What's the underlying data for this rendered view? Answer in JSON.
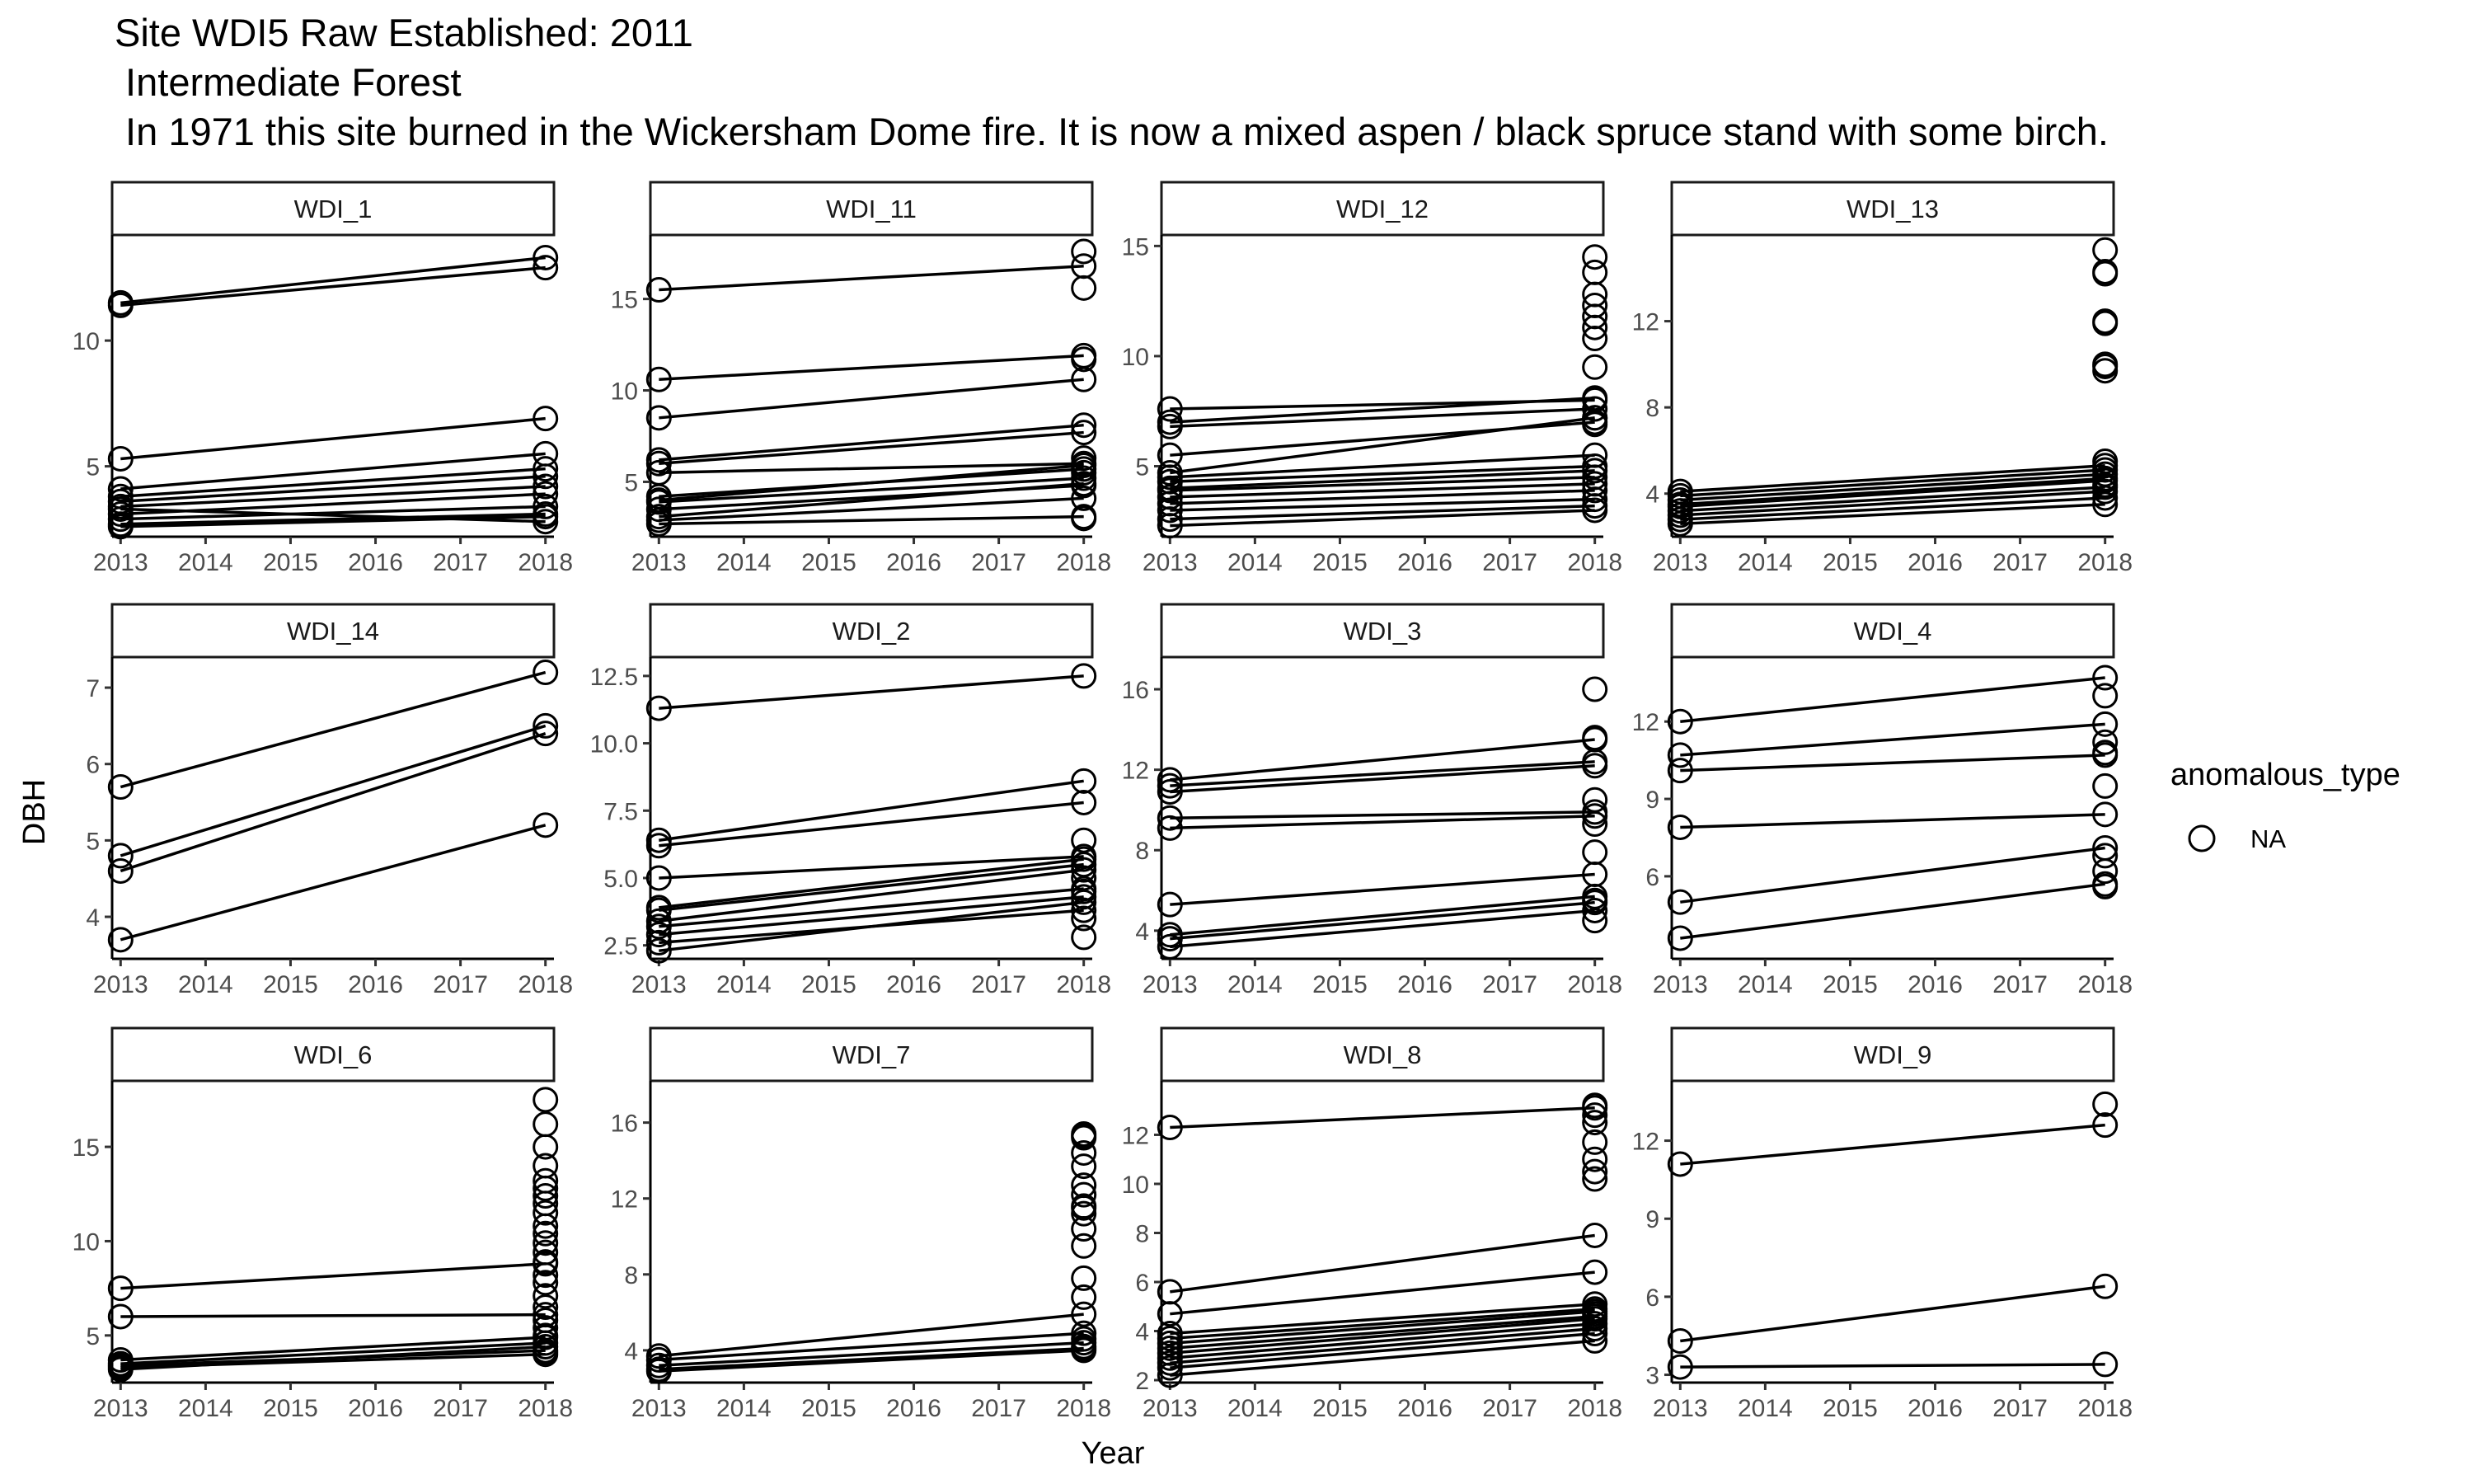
{
  "title_lines": [
    "Site WDI5 Raw Established: 2011",
    " Intermediate Forest",
    " In 1971 this site burned in the Wickersham Dome fire. It is now a mixed aspen / black spruce stand with some birch."
  ],
  "chart_data": {
    "type": "scatter",
    "subtype": "faceted point + line (connected per tree)",
    "xlabel": "Year",
    "ylabel": "DBH",
    "x_ticks": [
      2013,
      2014,
      2015,
      2016,
      2017,
      2018
    ],
    "xlim": [
      2012.9,
      2018.1
    ],
    "grid": false,
    "legend": {
      "title": "anomalous_type",
      "entries": [
        "NA"
      ],
      "position": "right",
      "marker": "open-circle"
    },
    "panels": [
      {
        "name": "WDI_1",
        "ylim": [
          2.2,
          14.2
        ],
        "y_ticks": [
          5,
          10
        ],
        "pairs": [
          [
            11.5,
            13.3
          ],
          [
            11.4,
            12.9
          ],
          [
            5.3,
            6.9
          ],
          [
            4.1,
            5.5
          ],
          [
            3.8,
            4.9
          ],
          [
            3.6,
            4.6
          ],
          [
            3.4,
            4.2
          ],
          [
            3.1,
            3.9
          ],
          [
            2.9,
            3.4
          ],
          [
            2.7,
            3.1
          ],
          [
            3.3,
            2.8
          ],
          [
            2.6,
            3.0
          ]
        ],
        "extras_2018": []
      },
      {
        "name": "WDI_11",
        "ylim": [
          2.0,
          18.5
        ],
        "y_ticks": [
          5,
          10,
          15
        ],
        "pairs": [
          [
            15.5,
            16.8
          ],
          [
            10.6,
            11.9
          ],
          [
            8.5,
            10.6
          ],
          [
            6.2,
            8.1
          ],
          [
            6.0,
            7.7
          ],
          [
            5.5,
            6.0
          ],
          [
            4.2,
            5.7
          ],
          [
            4.0,
            5.9
          ],
          [
            3.9,
            5.2
          ],
          [
            3.5,
            4.8
          ],
          [
            3.1,
            4.9
          ],
          [
            2.9,
            4.1
          ],
          [
            2.7,
            3.1
          ]
        ],
        "extras_2018": [
          17.6,
          15.6,
          11.7,
          6.3,
          5.5,
          3.0
        ]
      },
      {
        "name": "WDI_12",
        "ylim": [
          1.8,
          15.5
        ],
        "y_ticks": [
          5,
          10,
          15
        ],
        "pairs": [
          [
            7.6,
            8.0
          ],
          [
            7.0,
            8.1
          ],
          [
            6.8,
            7.6
          ],
          [
            5.5,
            7.0
          ],
          [
            4.7,
            7.2
          ],
          [
            4.5,
            5.5
          ],
          [
            4.3,
            5.0
          ],
          [
            4.0,
            4.8
          ],
          [
            3.9,
            4.5
          ],
          [
            3.6,
            4.2
          ],
          [
            3.3,
            3.9
          ],
          [
            3.0,
            3.5
          ],
          [
            2.6,
            3.2
          ],
          [
            2.3,
            3.0
          ]
        ],
        "extras_2018": [
          14.5,
          13.8,
          12.8,
          12.3,
          11.8,
          11.3,
          10.8,
          9.5,
          7.2,
          6.9
        ]
      },
      {
        "name": "WDI_13",
        "ylim": [
          2.0,
          16.0
        ],
        "y_ticks": [
          4,
          8,
          12
        ],
        "pairs": [
          [
            4.1,
            5.3
          ],
          [
            3.9,
            5.1
          ],
          [
            3.7,
            4.9
          ],
          [
            3.5,
            4.7
          ],
          [
            3.4,
            4.6
          ],
          [
            3.2,
            4.3
          ],
          [
            3.0,
            4.1
          ],
          [
            2.8,
            3.8
          ],
          [
            2.6,
            3.5
          ]
        ],
        "extras_2018": [
          15.3,
          14.3,
          14.2,
          12.0,
          11.9,
          10.0,
          9.9,
          9.7,
          5.5,
          4.4
        ]
      },
      {
        "name": "WDI_14",
        "ylim": [
          3.45,
          7.4
        ],
        "y_ticks": [
          4,
          5,
          6,
          7
        ],
        "pairs": [
          [
            5.7,
            7.2
          ],
          [
            4.8,
            6.5
          ],
          [
            4.6,
            6.4
          ],
          [
            3.7,
            5.2
          ]
        ],
        "extras_2018": []
      },
      {
        "name": "WDI_2",
        "ylim": [
          2.0,
          13.2
        ],
        "y_ticks": [
          2.5,
          5.0,
          7.5,
          10.0,
          12.5
        ],
        "pairs": [
          [
            11.3,
            12.5
          ],
          [
            6.4,
            8.6
          ],
          [
            6.2,
            7.8
          ],
          [
            5.0,
            5.8
          ],
          [
            3.9,
            5.7
          ],
          [
            3.8,
            5.5
          ],
          [
            3.4,
            5.3
          ],
          [
            3.2,
            4.6
          ],
          [
            2.9,
            4.3
          ],
          [
            2.6,
            3.8
          ],
          [
            2.3,
            4.1
          ]
        ],
        "extras_2018": [
          6.4,
          5.0,
          4.5,
          3.5,
          2.8
        ]
      },
      {
        "name": "WDI_3",
        "ylim": [
          2.6,
          17.6
        ],
        "y_ticks": [
          4,
          8,
          12,
          16
        ],
        "pairs": [
          [
            11.5,
            13.5
          ],
          [
            11.2,
            12.4
          ],
          [
            10.9,
            12.2
          ],
          [
            9.6,
            9.9
          ],
          [
            9.1,
            9.7
          ],
          [
            5.3,
            6.8
          ],
          [
            3.8,
            5.7
          ],
          [
            3.6,
            5.4
          ],
          [
            3.2,
            5.0
          ]
        ],
        "extras_2018": [
          16.0,
          13.6,
          10.5,
          9.3,
          7.9,
          5.5,
          4.5
        ]
      },
      {
        "name": "WDI_4",
        "ylim": [
          2.8,
          14.5
        ],
        "y_ticks": [
          6,
          9,
          12
        ],
        "pairs": [
          [
            12.0,
            13.7
          ],
          [
            10.7,
            11.9
          ],
          [
            10.1,
            10.7
          ],
          [
            7.9,
            8.4
          ],
          [
            5.0,
            7.1
          ],
          [
            3.6,
            5.7
          ]
        ],
        "extras_2018": [
          13.0,
          11.2,
          10.8,
          9.5,
          6.8,
          6.2,
          5.6
        ]
      },
      {
        "name": "WDI_6",
        "ylim": [
          2.5,
          18.5
        ],
        "y_ticks": [
          5,
          10,
          15
        ],
        "pairs": [
          [
            7.5,
            8.8
          ],
          [
            6.0,
            6.1
          ],
          [
            3.7,
            4.9
          ],
          [
            3.5,
            4.6
          ],
          [
            3.4,
            4.2
          ],
          [
            3.3,
            4.0
          ],
          [
            3.2,
            4.4
          ]
        ],
        "extras_2018": [
          17.5,
          16.2,
          15.0,
          14.0,
          13.2,
          12.8,
          12.4,
          12.0,
          11.5,
          10.8,
          10.4,
          9.9,
          9.4,
          8.9,
          8.2,
          7.8,
          7.1,
          6.5,
          5.8,
          5.4,
          5.0,
          4.1
        ]
      },
      {
        "name": "WDI_7",
        "ylim": [
          2.3,
          18.2
        ],
        "y_ticks": [
          4,
          8,
          12,
          16
        ],
        "pairs": [
          [
            3.7,
            5.9
          ],
          [
            3.5,
            4.9
          ],
          [
            3.2,
            4.4
          ],
          [
            3.0,
            4.1
          ],
          [
            2.9,
            4.0
          ]
        ],
        "extras_2018": [
          15.4,
          15.3,
          15.2,
          14.4,
          13.7,
          12.7,
          12.2,
          11.6,
          11.5,
          11.2,
          10.4,
          9.5,
          7.8,
          6.8,
          4.6,
          4.2
        ]
      },
      {
        "name": "WDI_8",
        "ylim": [
          1.9,
          14.2
        ],
        "y_ticks": [
          2,
          4,
          6,
          8,
          10,
          12
        ],
        "pairs": [
          [
            12.3,
            13.1
          ],
          [
            5.6,
            7.9
          ],
          [
            4.7,
            6.4
          ],
          [
            3.9,
            5.1
          ],
          [
            3.7,
            4.9
          ],
          [
            3.5,
            4.8
          ],
          [
            3.3,
            4.6
          ],
          [
            3.1,
            4.5
          ],
          [
            2.9,
            4.3
          ],
          [
            2.7,
            4.1
          ],
          [
            2.5,
            3.9
          ],
          [
            2.2,
            3.6
          ]
        ],
        "extras_2018": [
          13.2,
          12.8,
          12.5,
          11.7,
          11.0,
          10.5,
          10.2,
          4.7
        ]
      },
      {
        "name": "WDI_9",
        "ylim": [
          2.7,
          14.3
        ],
        "y_ticks": [
          3,
          6,
          9,
          12
        ],
        "pairs": [
          [
            11.1,
            12.6
          ],
          [
            4.3,
            6.4
          ],
          [
            3.3,
            3.4
          ]
        ],
        "extras_2018": [
          13.4
        ]
      }
    ]
  }
}
